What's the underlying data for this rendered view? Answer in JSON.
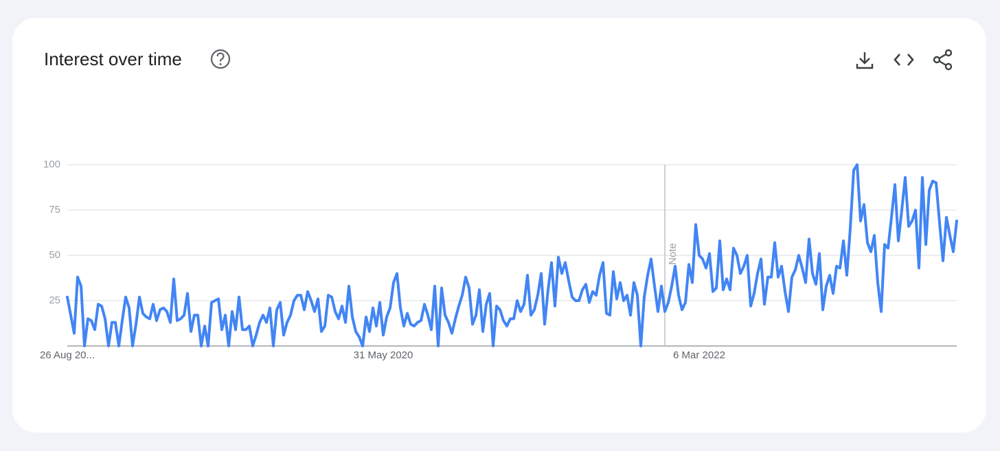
{
  "chart_data": {
    "type": "line",
    "title": "Interest over time",
    "color": "#4285f4",
    "ylim": [
      0,
      100
    ],
    "yticks": [
      25,
      50,
      75,
      100
    ],
    "grid": true,
    "annotations": [
      {
        "label": "Note",
        "at": 174
      }
    ],
    "categories": [
      "26 Aug 20...",
      null,
      null,
      null,
      null,
      null,
      null,
      null,
      null,
      null,
      null,
      null,
      null,
      null,
      null,
      null,
      null,
      null,
      null,
      null,
      null,
      null,
      null,
      null,
      null,
      null,
      null,
      null,
      null,
      null,
      null,
      null,
      null,
      null,
      null,
      null,
      null,
      null,
      null,
      null,
      null,
      null,
      null,
      null,
      null,
      null,
      null,
      null,
      null,
      null,
      null,
      null,
      null,
      null,
      null,
      null,
      null,
      null,
      null,
      null,
      null,
      null,
      null,
      null,
      null,
      null,
      null,
      null,
      null,
      null,
      null,
      null,
      null,
      null,
      null,
      null,
      null,
      null,
      null,
      null,
      null,
      null,
      null,
      null,
      null,
      null,
      null,
      null,
      null,
      null,
      null,
      null,
      "31 May 2020",
      null,
      null,
      null,
      null,
      null,
      null,
      null,
      null,
      null,
      null,
      null,
      null,
      null,
      null,
      null,
      null,
      null,
      null,
      null,
      null,
      null,
      null,
      null,
      null,
      null,
      null,
      null,
      null,
      null,
      null,
      null,
      null,
      null,
      null,
      null,
      null,
      null,
      null,
      null,
      null,
      null,
      null,
      null,
      null,
      null,
      null,
      null,
      null,
      null,
      null,
      null,
      null,
      null,
      null,
      null,
      null,
      null,
      null,
      null,
      null,
      null,
      null,
      null,
      null,
      null,
      null,
      null,
      null,
      null,
      null,
      null,
      null,
      null,
      null,
      null,
      null,
      null,
      null,
      null,
      null,
      null,
      null,
      null,
      null,
      null,
      null,
      null,
      null,
      null,
      null,
      null,
      "6 Mar 2022",
      null,
      null,
      null,
      null,
      null,
      null,
      null,
      null,
      null,
      null,
      null,
      null,
      null,
      null,
      null,
      null,
      null,
      null,
      null,
      null,
      null,
      null,
      null,
      null,
      null,
      null,
      null,
      null,
      null,
      null,
      null,
      null,
      null,
      null,
      null,
      null,
      null,
      null,
      null,
      null,
      null,
      null,
      null,
      null,
      null,
      null,
      null,
      null,
      null,
      null,
      null,
      null,
      null,
      null,
      null,
      null,
      null,
      null,
      null,
      null,
      null,
      null,
      null,
      null,
      null,
      null,
      null,
      null,
      null,
      null,
      null,
      null,
      null,
      null,
      null
    ],
    "values": [
      27,
      17,
      7,
      38,
      33,
      0,
      15,
      14,
      9,
      23,
      22,
      15,
      0,
      13,
      13,
      0,
      14,
      27,
      21,
      0,
      12,
      27,
      18,
      16,
      15,
      23,
      14,
      20,
      21,
      19,
      13,
      37,
      14,
      15,
      17,
      29,
      8,
      17,
      17,
      0,
      11,
      0,
      24,
      25,
      26,
      9,
      17,
      0,
      19,
      9,
      27,
      9,
      9,
      11,
      0,
      6,
      13,
      17,
      13,
      21,
      0,
      20,
      24,
      6,
      13,
      17,
      25,
      28,
      28,
      20,
      30,
      25,
      19,
      26,
      8,
      11,
      28,
      27,
      19,
      15,
      22,
      13,
      33,
      16,
      8,
      5,
      0,
      16,
      8,
      21,
      11,
      24,
      6,
      16,
      21,
      35,
      40,
      21,
      11,
      18,
      12,
      11,
      13,
      14,
      23,
      17,
      9,
      33,
      0,
      32,
      17,
      13,
      7,
      15,
      22,
      28,
      38,
      32,
      12,
      17,
      31,
      8,
      23,
      29,
      0,
      22,
      20,
      14,
      11,
      15,
      15,
      25,
      19,
      23,
      39,
      17,
      20,
      28,
      40,
      12,
      31,
      46,
      22,
      49,
      40,
      46,
      36,
      27,
      25,
      25,
      31,
      34,
      24,
      30,
      28,
      39,
      46,
      18,
      17,
      41,
      26,
      35,
      25,
      28,
      17,
      35,
      28,
      0,
      27,
      39,
      48,
      33,
      19,
      33,
      19,
      24,
      33,
      44,
      28,
      20,
      24,
      45,
      35,
      67,
      50,
      48,
      43,
      51,
      30,
      32,
      58,
      31,
      37,
      31,
      54,
      50,
      40,
      44,
      50,
      22,
      29,
      40,
      48,
      23,
      38,
      38,
      57,
      38,
      44,
      30,
      19,
      38,
      42,
      50,
      43,
      35,
      59,
      40,
      34,
      51,
      20,
      33,
      39,
      29,
      44,
      43,
      58,
      39,
      65,
      97,
      100,
      69,
      78,
      57,
      52,
      61,
      35,
      19,
      56,
      54,
      71,
      89,
      58,
      75,
      93,
      66,
      69,
      75,
      43,
      93,
      56,
      86,
      91,
      90,
      68,
      47,
      71,
      61,
      52,
      69
    ]
  }
}
